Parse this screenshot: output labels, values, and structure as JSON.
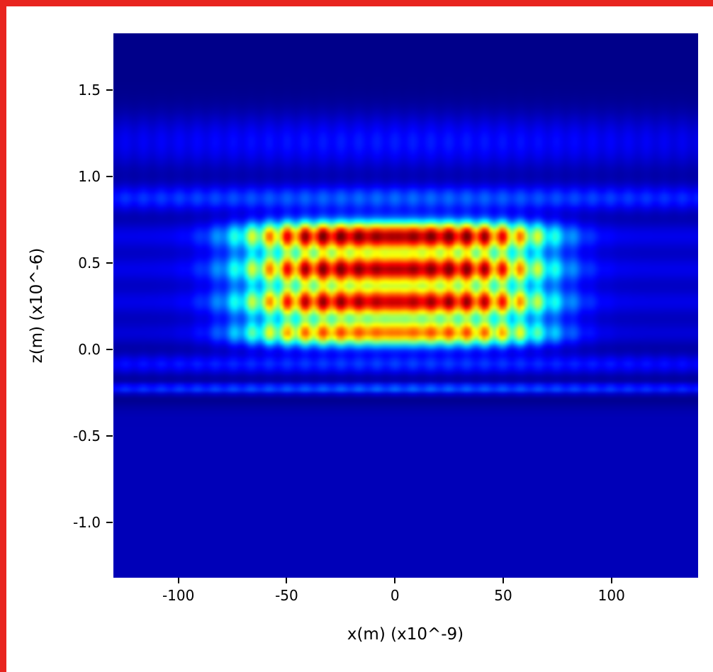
{
  "figure": {
    "background_color": "#ffffff",
    "frame_color": "#e8251f"
  },
  "chart_data": {
    "type": "heatmap",
    "title": "",
    "xlabel": "x(m) (x10^-9)",
    "ylabel": "z(m) (x10^-6)",
    "xlim": [
      -130,
      140
    ],
    "ylim": [
      -1.32,
      1.83
    ],
    "x_ticks": {
      "values": [
        -100,
        -50,
        0,
        50,
        100
      ],
      "labels": [
        "-100",
        "-50",
        "0",
        "50",
        "100"
      ]
    },
    "y_ticks": {
      "values": [
        1.5,
        1.0,
        0.5,
        0.0,
        -0.5,
        -1.0
      ],
      "labels": [
        "1.5",
        "1.0",
        "0.5",
        "0.0",
        "-0.5",
        "-1.0"
      ]
    },
    "colormap": "jet",
    "grid": false,
    "legend": false,
    "field_model": {
      "description": "Layered waveguide mode intensity: four bright horizontal lobes (red cores) confined to |x| < ~70 nm between z = 0.0 and 0.75, weak full-width horizontal bands above and below, uniform blue background below z = -0.33, darker navy background at top",
      "x_envelope": {
        "type": "supergaussian",
        "half_width_nm": 71,
        "power": 4,
        "floor": 0.1
      },
      "x_ripple": {
        "period_nm": 8.3,
        "amplitude": 0.22,
        "onset_nm": 55
      },
      "z_lobes": [
        {
          "z": 0.655,
          "amplitude": 0.95,
          "sigma": 0.062
        },
        {
          "z": 0.465,
          "amplitude": 0.93,
          "sigma": 0.062
        },
        {
          "z": 0.275,
          "amplitude": 0.91,
          "sigma": 0.062
        },
        {
          "z": 0.095,
          "amplitude": 0.74,
          "sigma": 0.055
        }
      ],
      "z_bands": [
        {
          "z": 1.2,
          "amplitude": 0.13,
          "sigma": 0.115
        },
        {
          "z": 0.875,
          "amplitude": 0.2,
          "sigma": 0.055
        },
        {
          "z": -0.085,
          "amplitude": 0.16,
          "sigma": 0.042
        },
        {
          "z": -0.225,
          "amplitude": 0.21,
          "sigma": 0.022
        }
      ],
      "background": {
        "bottom_level": 0.055,
        "top_level": 0.01,
        "boundary_z": -0.33
      }
    }
  }
}
